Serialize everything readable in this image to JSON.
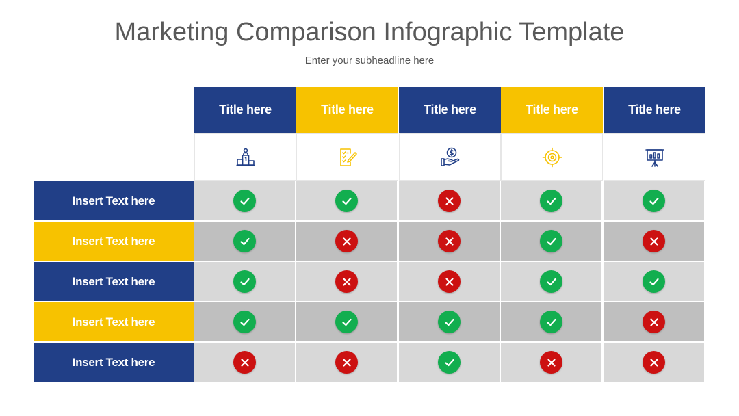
{
  "title": "Marketing Comparison Infographic Template",
  "subtitle": "Enter your subheadline here",
  "colors": {
    "navy": "#213F87",
    "yellow": "#F7C200",
    "check": "#12AE4F",
    "cross": "#CC1111",
    "cell_light": "#D8D8D8",
    "cell_dark": "#BFBFBF"
  },
  "columns": [
    {
      "title": "Title here",
      "color": "navy",
      "icon": "podium-icon"
    },
    {
      "title": "Title here",
      "color": "yellow",
      "icon": "checklist-pen-icon"
    },
    {
      "title": "Title here",
      "color": "navy",
      "icon": "hand-dollar-coin-icon"
    },
    {
      "title": "Title here",
      "color": "yellow",
      "icon": "target-icon"
    },
    {
      "title": "Title here",
      "color": "navy",
      "icon": "presentation-board-icon"
    }
  ],
  "rows": [
    {
      "label": "Insert Text here",
      "color": "navy",
      "values": [
        "check",
        "check",
        "cross",
        "check",
        "check"
      ]
    },
    {
      "label": "Insert Text here",
      "color": "yellow",
      "values": [
        "check",
        "cross",
        "cross",
        "check",
        "cross"
      ]
    },
    {
      "label": "Insert Text here",
      "color": "navy",
      "values": [
        "check",
        "cross",
        "cross",
        "check",
        "check"
      ]
    },
    {
      "label": "Insert Text here",
      "color": "yellow",
      "values": [
        "check",
        "check",
        "check",
        "check",
        "cross"
      ]
    },
    {
      "label": "Insert Text here",
      "color": "navy",
      "values": [
        "cross",
        "cross",
        "check",
        "cross",
        "cross"
      ]
    }
  ]
}
